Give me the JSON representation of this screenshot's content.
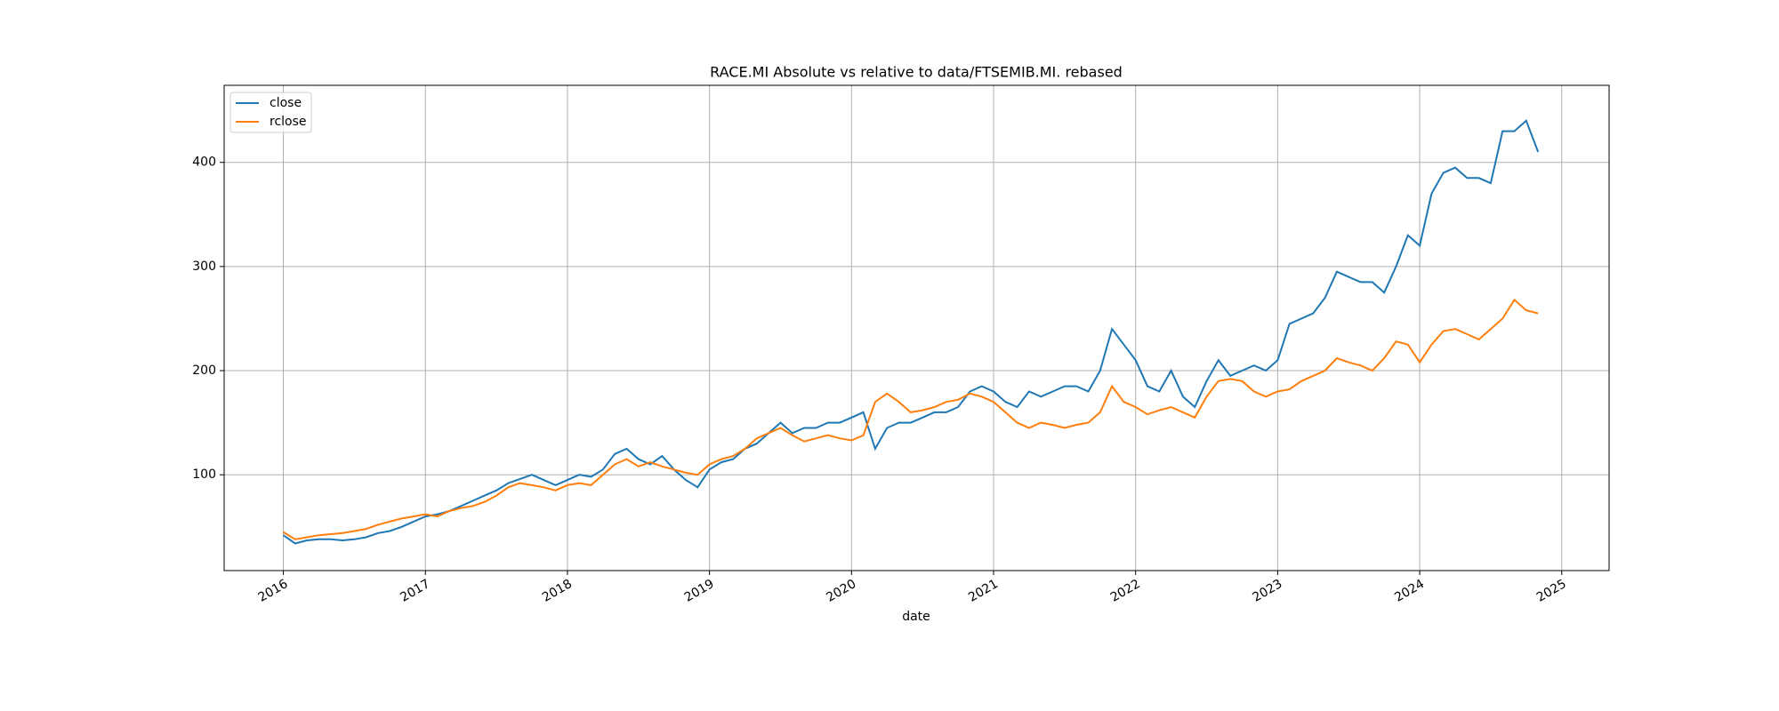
{
  "chart_data": {
    "type": "line",
    "title": "RACE.MI Absolute vs relative to data/FTSEMIB.MI. rebased",
    "x_label": "date",
    "x": [
      "2016-01",
      "2016-02",
      "2016-03",
      "2016-04",
      "2016-05",
      "2016-06",
      "2016-07",
      "2016-08",
      "2016-09",
      "2016-10",
      "2016-11",
      "2016-12",
      "2017-01",
      "2017-02",
      "2017-03",
      "2017-04",
      "2017-05",
      "2017-06",
      "2017-07",
      "2017-08",
      "2017-09",
      "2017-10",
      "2017-11",
      "2017-12",
      "2018-01",
      "2018-02",
      "2018-03",
      "2018-04",
      "2018-05",
      "2018-06",
      "2018-07",
      "2018-08",
      "2018-09",
      "2018-10",
      "2018-11",
      "2018-12",
      "2019-01",
      "2019-02",
      "2019-03",
      "2019-04",
      "2019-05",
      "2019-06",
      "2019-07",
      "2019-08",
      "2019-09",
      "2019-10",
      "2019-11",
      "2019-12",
      "2020-01",
      "2020-02",
      "2020-03",
      "2020-04",
      "2020-05",
      "2020-06",
      "2020-07",
      "2020-08",
      "2020-09",
      "2020-10",
      "2020-11",
      "2020-12",
      "2021-01",
      "2021-02",
      "2021-03",
      "2021-04",
      "2021-05",
      "2021-06",
      "2021-07",
      "2021-08",
      "2021-09",
      "2021-10",
      "2021-11",
      "2021-12",
      "2022-01",
      "2022-02",
      "2022-03",
      "2022-04",
      "2022-05",
      "2022-06",
      "2022-07",
      "2022-08",
      "2022-09",
      "2022-10",
      "2022-11",
      "2022-12",
      "2023-01",
      "2023-02",
      "2023-03",
      "2023-04",
      "2023-05",
      "2023-06",
      "2023-07",
      "2023-08",
      "2023-09",
      "2023-10",
      "2023-11",
      "2023-12",
      "2024-01",
      "2024-02",
      "2024-03",
      "2024-04",
      "2024-05",
      "2024-06",
      "2024-07",
      "2024-08",
      "2024-09",
      "2024-10",
      "2024-11"
    ],
    "series": [
      {
        "name": "close",
        "color": "#1f77b4",
        "values": [
          42,
          34,
          37,
          38,
          38,
          37,
          38,
          40,
          44,
          46,
          50,
          55,
          60,
          62,
          65,
          70,
          75,
          80,
          85,
          92,
          96,
          100,
          95,
          90,
          95,
          100,
          98,
          105,
          120,
          125,
          115,
          110,
          118,
          105,
          95,
          88,
          105,
          112,
          115,
          125,
          130,
          140,
          150,
          140,
          145,
          145,
          150,
          150,
          155,
          160,
          125,
          145,
          150,
          150,
          155,
          160,
          160,
          165,
          180,
          185,
          180,
          170,
          165,
          180,
          175,
          180,
          185,
          185,
          180,
          200,
          240,
          225,
          210,
          185,
          180,
          200,
          175,
          165,
          190,
          210,
          195,
          200,
          205,
          200,
          210,
          245,
          250,
          255,
          270,
          295,
          290,
          285,
          285,
          275,
          300,
          330,
          320,
          370,
          390,
          395,
          385,
          385,
          380,
          430,
          430,
          440,
          410
        ]
      },
      {
        "name": "rclose",
        "color": "#ff7f0e",
        "values": [
          45,
          38,
          40,
          42,
          43,
          44,
          46,
          48,
          52,
          55,
          58,
          60,
          62,
          60,
          65,
          68,
          70,
          74,
          80,
          88,
          92,
          90,
          88,
          85,
          90,
          92,
          90,
          100,
          110,
          115,
          108,
          112,
          108,
          105,
          102,
          100,
          110,
          115,
          118,
          125,
          135,
          140,
          145,
          138,
          132,
          135,
          138,
          135,
          133,
          138,
          170,
          178,
          170,
          160,
          162,
          165,
          170,
          172,
          178,
          175,
          170,
          160,
          150,
          145,
          150,
          148,
          145,
          148,
          150,
          160,
          185,
          170,
          165,
          158,
          162,
          165,
          160,
          155,
          175,
          190,
          192,
          190,
          180,
          175,
          180,
          182,
          190,
          195,
          200,
          212,
          208,
          205,
          200,
          212,
          228,
          225,
          208,
          225,
          238,
          240,
          235,
          230,
          240,
          250,
          268,
          258,
          255
        ]
      }
    ],
    "xlim": [
      "2015-08",
      "2025-05"
    ],
    "xticks": [
      "2016",
      "2017",
      "2018",
      "2019",
      "2020",
      "2021",
      "2022",
      "2023",
      "2024",
      "2025"
    ],
    "ylim": [
      8,
      474
    ],
    "yticks": [
      100,
      200,
      300,
      400
    ],
    "grid": true,
    "legend": "upper left"
  }
}
